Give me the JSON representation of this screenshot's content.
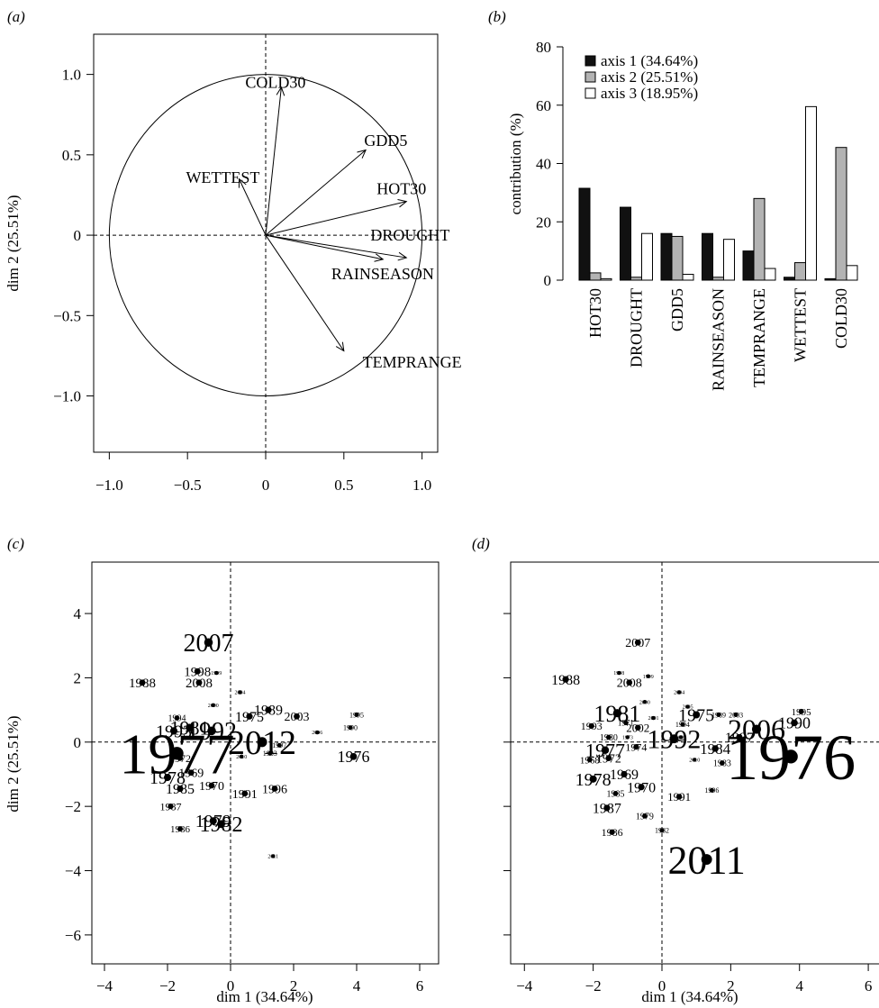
{
  "colors": {
    "ink": "#000000",
    "axis1": "#111111",
    "axis2": "#b3b3b3",
    "axis3": "#ffffff"
  },
  "chart_data": [
    {
      "panel": "(a)",
      "type": "correlation-circle",
      "xlabel": "",
      "ylabel": "dim 2 (25.51%)",
      "xlim": [
        -1.1,
        1.1
      ],
      "ylim": [
        -1.35,
        1.25
      ],
      "xticks": [
        -1.0,
        -0.5,
        0,
        0.5,
        1.0
      ],
      "yticks": [
        -1.0,
        -0.5,
        0,
        0.5,
        1.0
      ],
      "xticklabels": [
        "−1.0",
        "−0.5",
        "0",
        "0.5",
        "1.0"
      ],
      "yticklabels": [
        "−1.0",
        "−0.5",
        "0",
        "0.5",
        "1.0"
      ],
      "vectors": [
        {
          "label": "COLD30",
          "x": 0.1,
          "y": 0.92,
          "lx": -0.13,
          "ly": 0.95
        },
        {
          "label": "GDD5",
          "x": 0.64,
          "y": 0.53,
          "lx": 0.63,
          "ly": 0.59
        },
        {
          "label": "WETTEST",
          "x": -0.17,
          "y": 0.35,
          "lx": -0.51,
          "ly": 0.36
        },
        {
          "label": "HOT30",
          "x": 0.9,
          "y": 0.21,
          "lx": 0.71,
          "ly": 0.29
        },
        {
          "label": "DROUGHT",
          "x": 0.9,
          "y": -0.14,
          "lx": 0.67,
          "ly": 0.0
        },
        {
          "label": "RAINSEASON",
          "x": 0.75,
          "y": -0.15,
          "lx": 0.42,
          "ly": -0.24
        },
        {
          "label": "TEMPRANGE",
          "x": 0.5,
          "y": -0.72,
          "lx": 0.62,
          "ly": -0.79
        }
      ]
    },
    {
      "panel": "(b)",
      "type": "bar",
      "ylabel": "contribution (%)",
      "ylim": [
        0,
        80
      ],
      "yticks": [
        0,
        20,
        40,
        60,
        80
      ],
      "categories": [
        "HOT30",
        "DROUGHT",
        "GDD5",
        "RAINSEASON",
        "TEMPRANGE",
        "WETTEST",
        "COLD30"
      ],
      "series": [
        {
          "name": "axis 1 (34.64%)",
          "values": [
            31.5,
            25,
            16,
            16,
            10,
            1,
            0.5
          ]
        },
        {
          "name": "axis 2 (25.51%)",
          "values": [
            2.5,
            1,
            15,
            1,
            28,
            6,
            45.5
          ]
        },
        {
          "name": "axis 3 (18.95%)",
          "values": [
            0.5,
            16,
            2,
            14,
            4,
            59.5,
            5
          ]
        }
      ],
      "legend_position": "top-left"
    },
    {
      "panel": "(c)",
      "type": "scatter",
      "xlabel": "dim 1 (34.64%)",
      "ylabel": "dim 2 (25.51%)",
      "xlim": [
        -4.4,
        6.6
      ],
      "ylim": [
        -6.9,
        5.6
      ],
      "xticks": [
        -4,
        -2,
        0,
        2,
        4,
        6
      ],
      "yticks": [
        -6,
        -4,
        -2,
        0,
        2,
        4
      ],
      "xticklabels": [
        "−4",
        "−2",
        "0",
        "2",
        "4",
        "6"
      ],
      "yticklabels": [
        "−6",
        "−4",
        "−2",
        "0",
        "2",
        "4"
      ],
      "points": [
        {
          "label": "2007",
          "x": -0.7,
          "y": 3.1,
          "size": 28
        },
        {
          "label": "1998",
          "x": -1.05,
          "y": 2.2,
          "size": 15
        },
        {
          "label": "1999",
          "x": -0.45,
          "y": 2.15,
          "size": 6
        },
        {
          "label": "1988",
          "x": -2.8,
          "y": 1.85,
          "size": 15
        },
        {
          "label": "2008",
          "x": -1.0,
          "y": 1.85,
          "size": 15
        },
        {
          "label": "2004",
          "x": 0.3,
          "y": 1.55,
          "size": 6
        },
        {
          "label": "2000",
          "x": -0.55,
          "y": 1.15,
          "size": 6
        },
        {
          "label": "1989",
          "x": 1.2,
          "y": 1.0,
          "size": 16
        },
        {
          "label": "2003",
          "x": 2.1,
          "y": 0.8,
          "size": 14
        },
        {
          "label": "1995",
          "x": 4.0,
          "y": 0.85,
          "size": 8
        },
        {
          "label": "1975",
          "x": 0.6,
          "y": 0.8,
          "size": 16
        },
        {
          "label": "1994",
          "x": -1.7,
          "y": 0.75,
          "size": 10
        },
        {
          "label": "1993",
          "x": -1.8,
          "y": 0.35,
          "size": 20
        },
        {
          "label": "1981",
          "x": -1.3,
          "y": 0.45,
          "size": 22
        },
        {
          "label": "1992",
          "x": -0.6,
          "y": 0.35,
          "size": 28
        },
        {
          "label": "1990",
          "x": 3.8,
          "y": 0.45,
          "size": 8
        },
        {
          "label": "2006",
          "x": 2.75,
          "y": 0.3,
          "size": 6
        },
        {
          "label": "2012",
          "x": 1.0,
          "y": 0.0,
          "size": 38
        },
        {
          "label": "1997",
          "x": 1.55,
          "y": -0.1,
          "size": 8
        },
        {
          "label": "1983",
          "x": 1.25,
          "y": -0.35,
          "size": 8
        },
        {
          "label": "2010",
          "x": 0.35,
          "y": -0.45,
          "size": 6
        },
        {
          "label": "1977",
          "x": -1.7,
          "y": -0.35,
          "size": 64
        },
        {
          "label": "1972",
          "x": -1.6,
          "y": -0.5,
          "size": 12
        },
        {
          "label": "1976",
          "x": 3.9,
          "y": -0.45,
          "size": 18
        },
        {
          "label": "1969",
          "x": -1.25,
          "y": -0.95,
          "size": 14
        },
        {
          "label": "1978",
          "x": -2.0,
          "y": -1.1,
          "size": 20
        },
        {
          "label": "1970",
          "x": -0.6,
          "y": -1.35,
          "size": 14
        },
        {
          "label": "1985",
          "x": -1.6,
          "y": -1.45,
          "size": 16
        },
        {
          "label": "1991",
          "x": 0.45,
          "y": -1.6,
          "size": 14
        },
        {
          "label": "1996",
          "x": 1.4,
          "y": -1.45,
          "size": 14
        },
        {
          "label": "1987",
          "x": -1.9,
          "y": -2.0,
          "size": 12
        },
        {
          "label": "1979",
          "x": -0.55,
          "y": -2.45,
          "size": 20
        },
        {
          "label": "1982",
          "x": -0.3,
          "y": -2.55,
          "size": 24
        },
        {
          "label": "1986",
          "x": -1.6,
          "y": -2.7,
          "size": 11
        },
        {
          "label": "2011",
          "x": 1.35,
          "y": -3.55,
          "size": 6
        }
      ]
    },
    {
      "panel": "(d)",
      "type": "scatter",
      "xlabel": "dim 1 (34.64%)",
      "ylabel": "",
      "xlim": [
        -4.4,
        6.6
      ],
      "ylim": [
        -6.9,
        5.6
      ],
      "xticks": [
        -4,
        -2,
        0,
        2,
        4,
        6
      ],
      "yticks": [
        -6,
        -4,
        -2,
        0,
        2,
        4
      ],
      "xticklabels": [
        "−4",
        "−2",
        "0",
        "2",
        "4",
        "6"
      ],
      "points": [
        {
          "label": "2007",
          "x": -0.7,
          "y": 3.1,
          "size": 14
        },
        {
          "label": "1998",
          "x": -1.25,
          "y": 2.15,
          "size": 6
        },
        {
          "label": "1999",
          "x": -0.4,
          "y": 2.05,
          "size": 6
        },
        {
          "label": "1988",
          "x": -2.8,
          "y": 1.95,
          "size": 16
        },
        {
          "label": "2008",
          "x": -0.95,
          "y": 1.85,
          "size": 14
        },
        {
          "label": "2004",
          "x": 0.5,
          "y": 1.55,
          "size": 6
        },
        {
          "label": "2000",
          "x": -0.5,
          "y": 1.25,
          "size": 6
        },
        {
          "label": "2005",
          "x": 0.75,
          "y": 1.1,
          "size": 6
        },
        {
          "label": "1989",
          "x": 1.65,
          "y": 0.85,
          "size": 8
        },
        {
          "label": "2003",
          "x": 2.15,
          "y": 0.85,
          "size": 8
        },
        {
          "label": "1995",
          "x": 4.05,
          "y": 0.95,
          "size": 11
        },
        {
          "label": "1975",
          "x": 1.0,
          "y": 0.85,
          "size": 20
        },
        {
          "label": "1981",
          "x": -1.3,
          "y": 0.9,
          "size": 26
        },
        {
          "label": "2001",
          "x": -0.25,
          "y": 0.75,
          "size": 6
        },
        {
          "label": "1994",
          "x": 0.6,
          "y": 0.55,
          "size": 8
        },
        {
          "label": "1993",
          "x": -2.05,
          "y": 0.5,
          "size": 12
        },
        {
          "label": "1971",
          "x": -1.05,
          "y": 0.6,
          "size": 9
        },
        {
          "label": "2002",
          "x": -0.7,
          "y": 0.45,
          "size": 13
        },
        {
          "label": "1990",
          "x": 3.85,
          "y": 0.6,
          "size": 18
        },
        {
          "label": "2006",
          "x": 2.75,
          "y": 0.4,
          "size": 32
        },
        {
          "label": "1997",
          "x": 2.25,
          "y": 0.15,
          "size": 16
        },
        {
          "label": "2009",
          "x": 0.55,
          "y": 0.15,
          "size": 6
        },
        {
          "label": "1980",
          "x": -1.55,
          "y": 0.15,
          "size": 10
        },
        {
          "label": "1973",
          "x": -1.0,
          "y": 0.15,
          "size": 6
        },
        {
          "label": "1992",
          "x": 0.35,
          "y": 0.1,
          "size": 30
        },
        {
          "label": "1984",
          "x": 1.55,
          "y": -0.2,
          "size": 17
        },
        {
          "label": "1974",
          "x": -0.75,
          "y": -0.15,
          "size": 12
        },
        {
          "label": "1977",
          "x": -1.65,
          "y": -0.25,
          "size": 22
        },
        {
          "label": "2010",
          "x": 0.95,
          "y": -0.55,
          "size": 6
        },
        {
          "label": "1983",
          "x": 1.75,
          "y": -0.65,
          "size": 10
        },
        {
          "label": "1972",
          "x": -1.55,
          "y": -0.5,
          "size": 14
        },
        {
          "label": "1968",
          "x": -2.1,
          "y": -0.55,
          "size": 11
        },
        {
          "label": "1976",
          "x": 3.75,
          "y": -0.45,
          "size": 72
        },
        {
          "label": "1969",
          "x": -1.1,
          "y": -1.0,
          "size": 16
        },
        {
          "label": "1978",
          "x": -2.0,
          "y": -1.15,
          "size": 20
        },
        {
          "label": "1970",
          "x": -0.6,
          "y": -1.4,
          "size": 16
        },
        {
          "label": "1985",
          "x": -1.35,
          "y": -1.6,
          "size": 10
        },
        {
          "label": "1991",
          "x": 0.5,
          "y": -1.7,
          "size": 13
        },
        {
          "label": "1996",
          "x": 1.45,
          "y": -1.5,
          "size": 8
        },
        {
          "label": "1987",
          "x": -1.6,
          "y": -2.05,
          "size": 16
        },
        {
          "label": "1979",
          "x": -0.5,
          "y": -2.3,
          "size": 10
        },
        {
          "label": "1982",
          "x": 0.0,
          "y": -2.75,
          "size": 8
        },
        {
          "label": "1986",
          "x": -1.45,
          "y": -2.8,
          "size": 12
        },
        {
          "label": "2011",
          "x": 1.3,
          "y": -3.65,
          "size": 44
        }
      ]
    }
  ]
}
